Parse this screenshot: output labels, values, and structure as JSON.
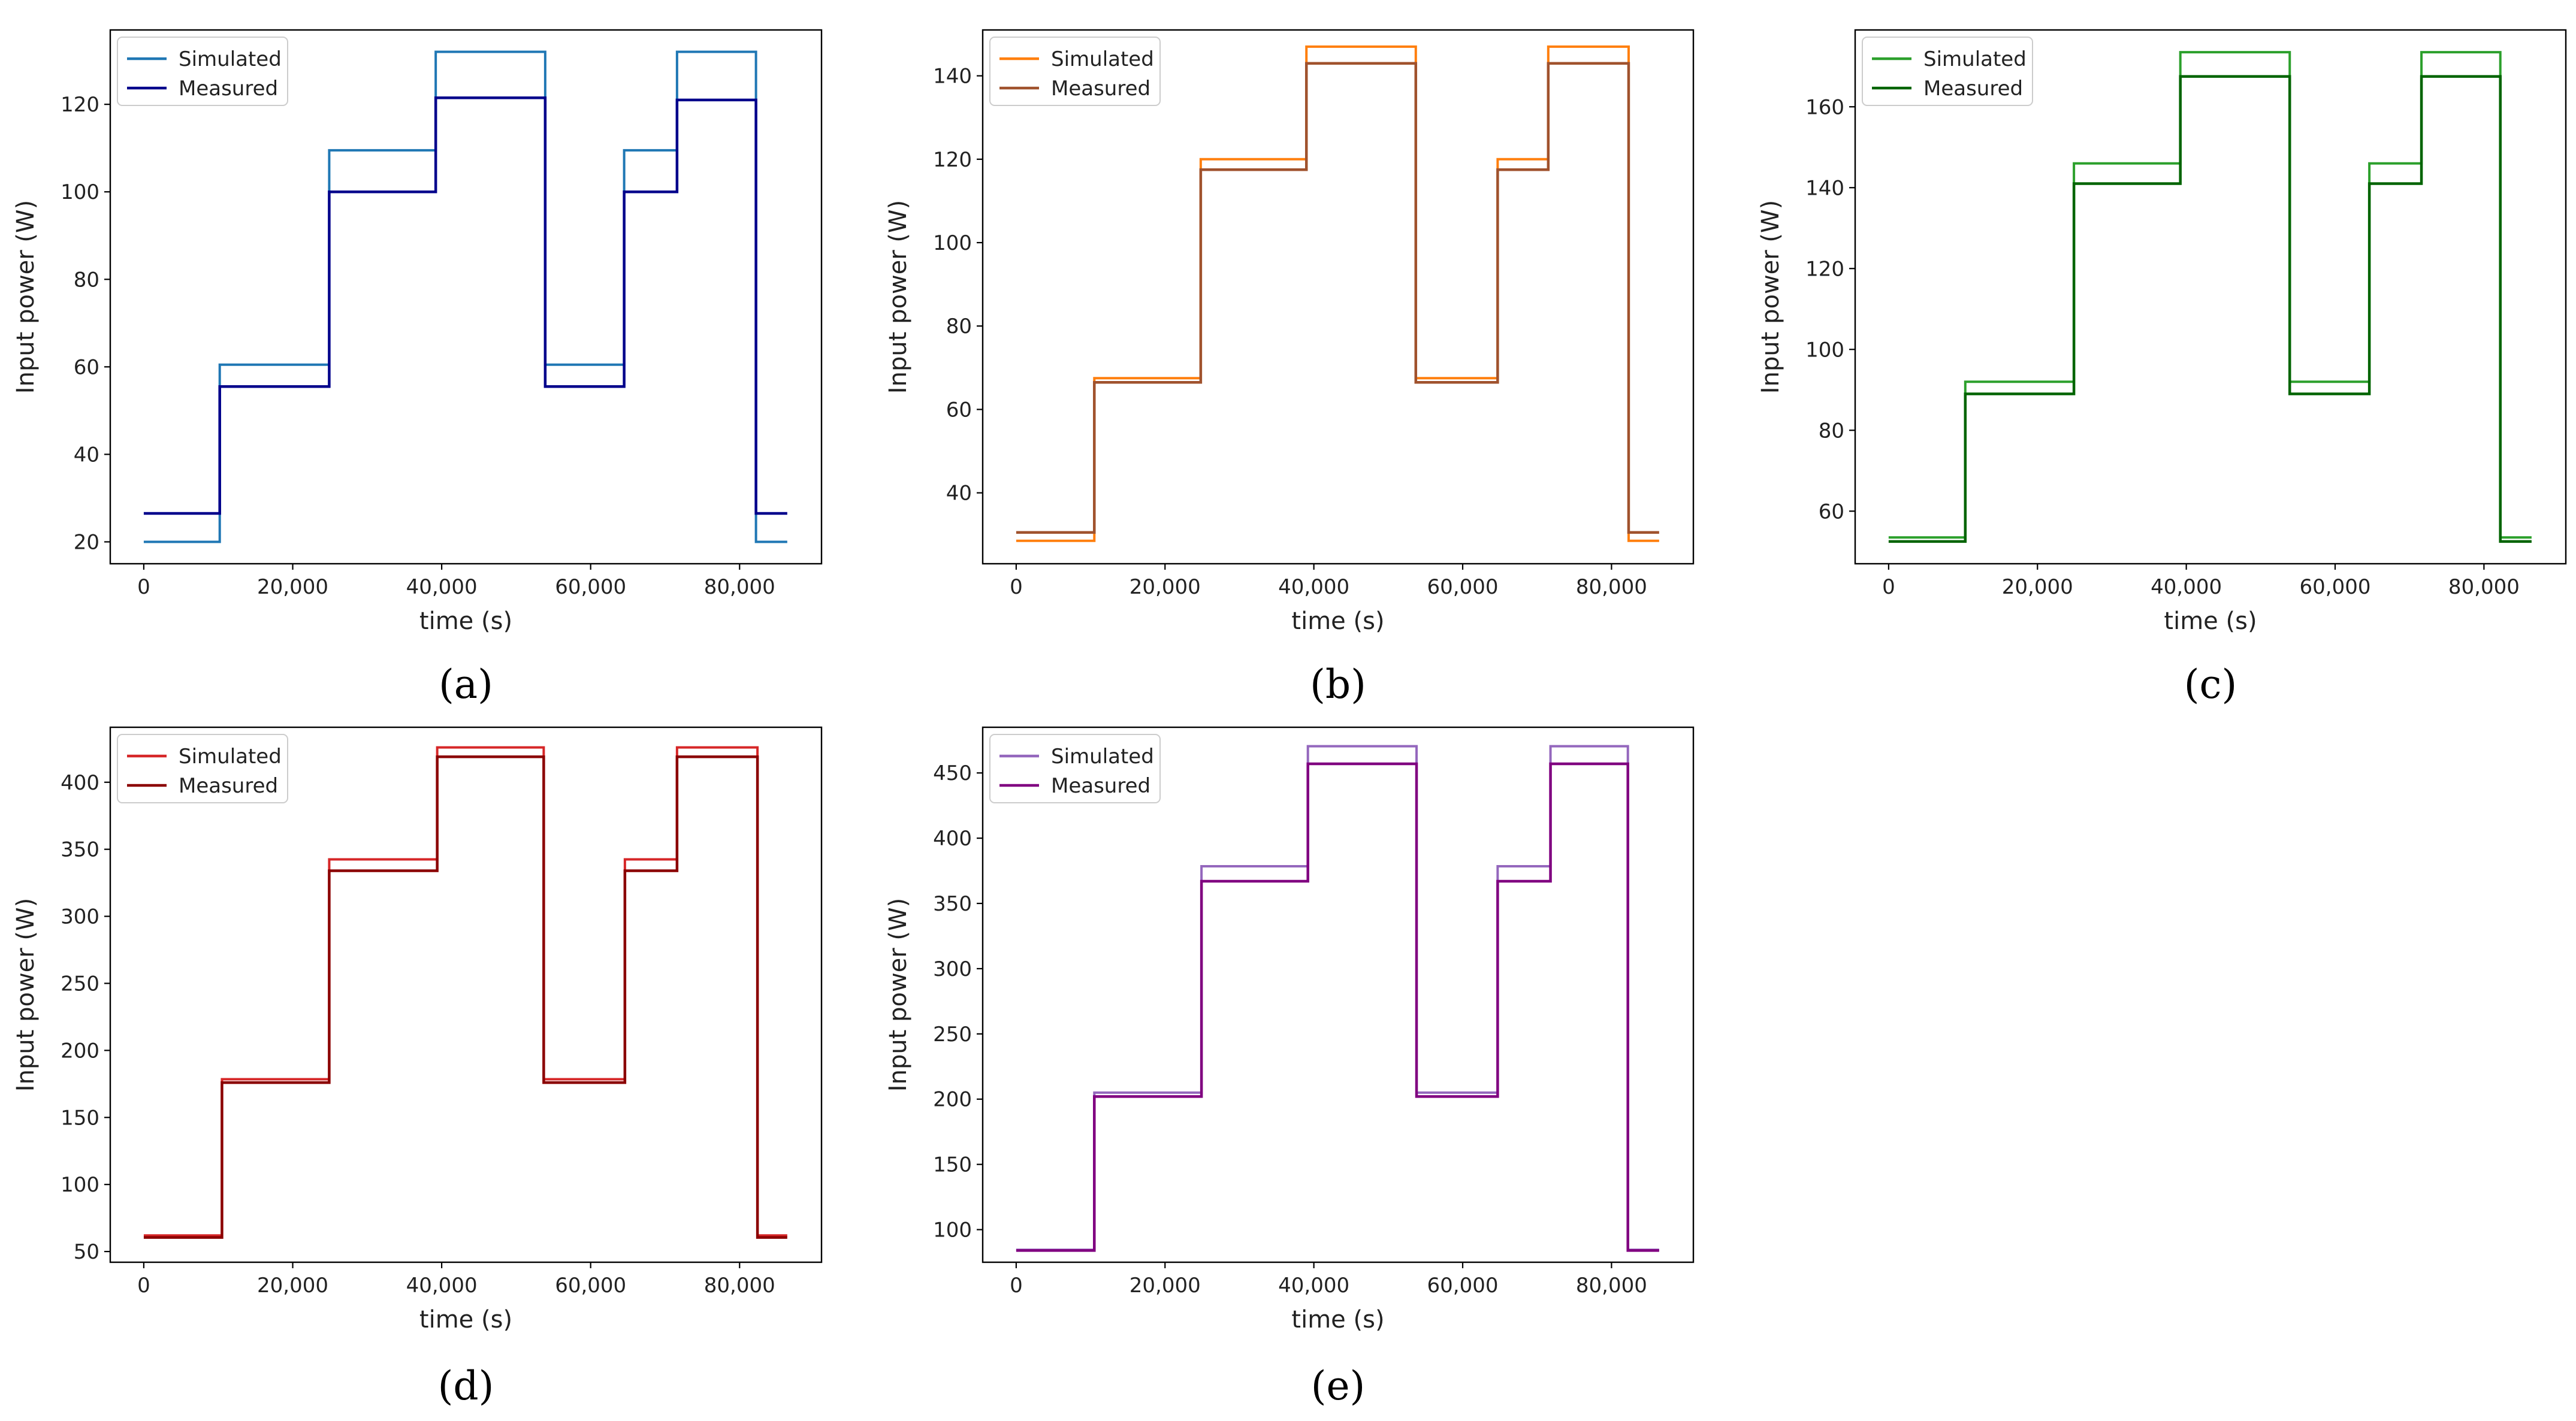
{
  "figure": {
    "panels": [
      "(a)",
      "(b)",
      "(c)",
      "(d)",
      "(e)"
    ]
  },
  "chart_data": [
    {
      "type": "line",
      "panel_label": "(a)",
      "xlabel": "time (s)",
      "ylabel": "Input power (W)",
      "xlim": [
        -4500,
        91000
      ],
      "ylim": [
        15,
        137
      ],
      "xticks": [
        0,
        20000,
        40000,
        60000,
        80000
      ],
      "xtick_labels": [
        "0",
        "20,000",
        "40,000",
        "60,000",
        "80,000"
      ],
      "yticks": [
        20,
        40,
        60,
        80,
        100,
        120
      ],
      "ytick_labels": [
        "20",
        "40",
        "60",
        "80",
        "100",
        "120"
      ],
      "legend": {
        "position": "upper-left",
        "entries": [
          "Simulated",
          "Measured"
        ]
      },
      "series": [
        {
          "name": "Simulated",
          "color": "#1f77b4",
          "x": [
            0,
            10200,
            10200,
            24900,
            24900,
            39200,
            39200,
            53900,
            53900,
            64500,
            64500,
            71600,
            71600,
            82200,
            82200,
            86400
          ],
          "y": [
            20,
            20,
            60.5,
            60.5,
            109.5,
            109.5,
            132,
            132,
            60.5,
            60.5,
            109.5,
            109.5,
            132,
            132,
            20,
            20
          ]
        },
        {
          "name": "Measured",
          "color": "#00008b",
          "x": [
            0,
            10200,
            10200,
            24900,
            24900,
            39200,
            39200,
            53900,
            53900,
            64500,
            64500,
            71600,
            71600,
            82200,
            82200,
            86400
          ],
          "y": [
            26.5,
            26.5,
            55.5,
            55.5,
            100,
            100,
            121.5,
            121.5,
            55.5,
            55.5,
            100,
            100,
            121,
            121,
            26.5,
            26.5
          ]
        }
      ]
    },
    {
      "type": "line",
      "panel_label": "(b)",
      "xlabel": "time (s)",
      "ylabel": "Input power (W)",
      "xlim": [
        -4500,
        91000
      ],
      "ylim": [
        23,
        151
      ],
      "xticks": [
        0,
        20000,
        40000,
        60000,
        80000
      ],
      "xtick_labels": [
        "0",
        "20,000",
        "40,000",
        "60,000",
        "80,000"
      ],
      "yticks": [
        40,
        60,
        80,
        100,
        120,
        140
      ],
      "ytick_labels": [
        "40",
        "60",
        "80",
        "100",
        "120",
        "140"
      ],
      "legend": {
        "position": "upper-left",
        "entries": [
          "Simulated",
          "Measured"
        ]
      },
      "series": [
        {
          "name": "Simulated",
          "color": "#ff7f0e",
          "x": [
            0,
            10500,
            10500,
            24800,
            24800,
            39000,
            39000,
            53700,
            53700,
            64700,
            64700,
            71500,
            71500,
            82300,
            82300,
            86400
          ],
          "y": [
            28.5,
            28.5,
            67.5,
            67.5,
            120,
            120,
            147,
            147,
            67.5,
            67.5,
            120,
            120,
            147,
            147,
            28.5,
            28.5
          ]
        },
        {
          "name": "Measured",
          "color": "#a0522d",
          "x": [
            0,
            10500,
            10500,
            24800,
            24800,
            39000,
            39000,
            53700,
            53700,
            64700,
            64700,
            71500,
            71500,
            82300,
            82300,
            86400
          ],
          "y": [
            30.5,
            30.5,
            66.5,
            66.5,
            117.5,
            117.5,
            143,
            143,
            66.5,
            66.5,
            117.5,
            117.5,
            143,
            143,
            30.5,
            30.5
          ]
        }
      ]
    },
    {
      "type": "line",
      "panel_label": "(c)",
      "xlabel": "time (s)",
      "ylabel": "Input power (W)",
      "xlim": [
        -4500,
        91000
      ],
      "ylim": [
        47,
        179
      ],
      "xticks": [
        0,
        20000,
        40000,
        60000,
        80000
      ],
      "xtick_labels": [
        "0",
        "20,000",
        "40,000",
        "60,000",
        "80,000"
      ],
      "yticks": [
        60,
        80,
        100,
        120,
        140,
        160
      ],
      "ytick_labels": [
        "60",
        "80",
        "100",
        "120",
        "140",
        "160"
      ],
      "legend": {
        "position": "upper-left",
        "entries": [
          "Simulated",
          "Measured"
        ]
      },
      "series": [
        {
          "name": "Simulated",
          "color": "#2ca02c",
          "x": [
            0,
            10300,
            10300,
            24900,
            24900,
            39200,
            39200,
            53900,
            53900,
            64600,
            64600,
            71600,
            71600,
            82200,
            82200,
            86400
          ],
          "y": [
            53.5,
            53.5,
            92,
            92,
            146,
            146,
            173.5,
            173.5,
            92,
            92,
            146,
            146,
            173.5,
            173.5,
            53.5,
            53.5
          ]
        },
        {
          "name": "Measured",
          "color": "#006400",
          "x": [
            0,
            10300,
            10300,
            24900,
            24900,
            39200,
            39200,
            53900,
            53900,
            64600,
            64600,
            71600,
            71600,
            82200,
            82200,
            86400
          ],
          "y": [
            52.5,
            52.5,
            89,
            89,
            141,
            141,
            167.5,
            167.5,
            89,
            89,
            141,
            141,
            167.5,
            167.5,
            52.5,
            52.5
          ]
        }
      ]
    },
    {
      "type": "line",
      "panel_label": "(d)",
      "xlabel": "time (s)",
      "ylabel": "Input power (W)",
      "xlim": [
        -4500,
        91000
      ],
      "ylim": [
        42,
        441
      ],
      "xticks": [
        0,
        20000,
        40000,
        60000,
        80000
      ],
      "xtick_labels": [
        "0",
        "20,000",
        "40,000",
        "60,000",
        "80,000"
      ],
      "yticks": [
        50,
        100,
        150,
        200,
        250,
        300,
        350,
        400
      ],
      "ytick_labels": [
        "50",
        "100",
        "150",
        "200",
        "250",
        "300",
        "350",
        "400"
      ],
      "legend": {
        "position": "upper-left",
        "entries": [
          "Simulated",
          "Measured"
        ]
      },
      "series": [
        {
          "name": "Simulated",
          "color": "#d62728",
          "x": [
            0,
            10500,
            10500,
            24900,
            24900,
            39400,
            39400,
            53700,
            53700,
            64600,
            64600,
            71600,
            71600,
            82400,
            82400,
            86400
          ],
          "y": [
            62,
            62,
            178.5,
            178.5,
            342.5,
            342.5,
            426,
            426,
            178.5,
            178.5,
            342.5,
            342.5,
            426,
            426,
            62,
            62
          ]
        },
        {
          "name": "Measured",
          "color": "#8b0000",
          "x": [
            0,
            10500,
            10500,
            24900,
            24900,
            39400,
            39400,
            53700,
            53700,
            64600,
            64600,
            71600,
            71600,
            82400,
            82400,
            86400
          ],
          "y": [
            60.5,
            60.5,
            176,
            176,
            334,
            334,
            419,
            419,
            176,
            176,
            334,
            334,
            419,
            419,
            60.5,
            60.5
          ]
        }
      ]
    },
    {
      "type": "line",
      "panel_label": "(e)",
      "xlabel": "time (s)",
      "ylabel": "Input power (W)",
      "xlim": [
        -4500,
        91000
      ],
      "ylim": [
        75,
        485
      ],
      "xticks": [
        0,
        20000,
        40000,
        60000,
        80000
      ],
      "xtick_labels": [
        "0",
        "20,000",
        "40,000",
        "60,000",
        "80,000"
      ],
      "yticks": [
        100,
        150,
        200,
        250,
        300,
        350,
        400,
        450
      ],
      "ytick_labels": [
        "100",
        "150",
        "200",
        "250",
        "300",
        "350",
        "400",
        "450"
      ],
      "legend": {
        "position": "upper-left",
        "entries": [
          "Simulated",
          "Measured"
        ]
      },
      "series": [
        {
          "name": "Simulated",
          "color": "#9467bd",
          "x": [
            0,
            10500,
            10500,
            24900,
            24900,
            39200,
            39200,
            53800,
            53800,
            64700,
            64700,
            71800,
            71800,
            82200,
            82200,
            86400
          ],
          "y": [
            84.5,
            84.5,
            205,
            205,
            378.5,
            378.5,
            470.5,
            470.5,
            205,
            205,
            378.5,
            378.5,
            470.5,
            470.5,
            84.5,
            84.5
          ]
        },
        {
          "name": "Measured",
          "color": "#800080",
          "x": [
            0,
            10500,
            10500,
            24900,
            24900,
            39200,
            39200,
            53800,
            53800,
            64700,
            64700,
            71800,
            71800,
            82200,
            82200,
            86400
          ],
          "y": [
            84,
            84,
            202,
            202,
            367,
            367,
            457,
            457,
            202,
            202,
            367,
            367,
            457,
            457,
            84,
            84
          ]
        }
      ]
    }
  ]
}
